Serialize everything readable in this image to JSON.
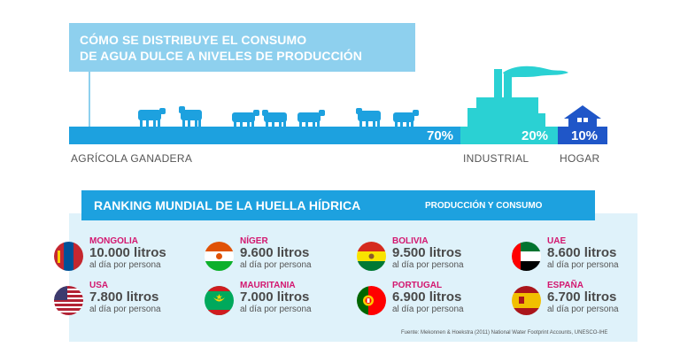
{
  "title": {
    "line1": "CÓMO SE DISTRIBUYE EL CONSUMO",
    "line2": "DE AGUA DULCE A NIVELES DE PRODUCCIÓN"
  },
  "distribution": [
    {
      "label": "AGRÍCOLA GANADERA",
      "percent_text": "70%",
      "percent": 70,
      "color": "#1da1df"
    },
    {
      "label": "INDUSTRIAL",
      "percent_text": "20%",
      "percent": 20,
      "color": "#2ad1d3"
    },
    {
      "label": "HOGAR",
      "percent_text": "10%",
      "percent": 10,
      "color": "#1f56c8"
    }
  ],
  "ranking": {
    "title": "RANKING MUNDIAL DE LA HUELLA HÍDRICA",
    "subtitle": "PRODUCCIÓN Y CONSUMO",
    "unit_text": "al día por persona",
    "countries": [
      {
        "name": "MONGOLIA",
        "value": "10.000 litros",
        "flag": "mongolia-flag-icon"
      },
      {
        "name": "NÍGER",
        "value": "9.600 litros",
        "flag": "niger-flag-icon"
      },
      {
        "name": "BOLIVIA",
        "value": "9.500 litros",
        "flag": "bolivia-flag-icon"
      },
      {
        "name": "UAE",
        "value": "8.600 litros",
        "flag": "uae-flag-icon"
      },
      {
        "name": "USA",
        "value": "7.800 litros",
        "flag": "usa-flag-icon"
      },
      {
        "name": "MAURITANIA",
        "value": "7.000 litros",
        "flag": "mauritania-flag-icon"
      },
      {
        "name": "PORTUGAL",
        "value": "6.900 litros",
        "flag": "portugal-flag-icon"
      },
      {
        "name": "ESPAÑA",
        "value": "6.700 litros",
        "flag": "spain-flag-icon"
      }
    ]
  },
  "source": "Fuente: Mekonnen & Hoekstra (2011) National Water Footprint Accounts, UNESCO-IHE",
  "colors": {
    "accent": "#1da1df",
    "title_bg": "#8ed0ee",
    "name_color": "#d3176f"
  }
}
